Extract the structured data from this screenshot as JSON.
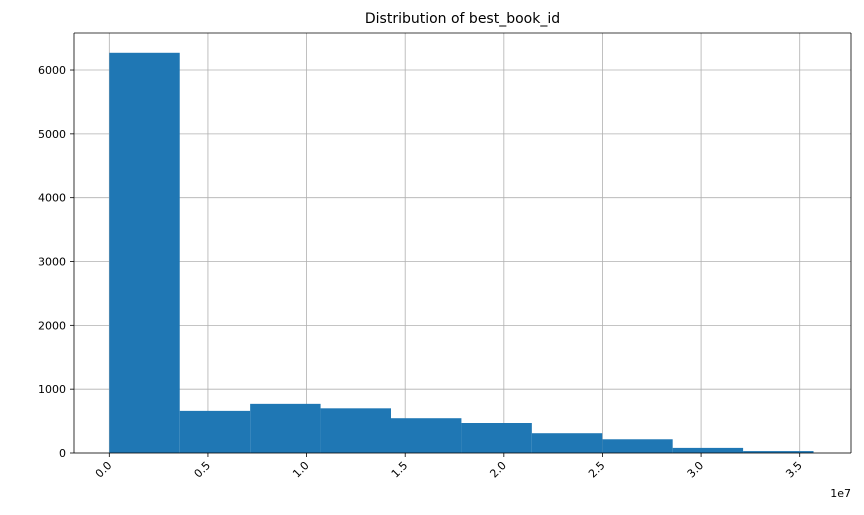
{
  "chart_data": {
    "type": "bar",
    "title": "Distribution of best_book_id",
    "xlabel": "",
    "ylabel": "",
    "x_offset_label": "1e7",
    "xlim": [
      -0.179,
      3.76
    ],
    "ylim": [
      0,
      6580
    ],
    "x_ticks": [
      0.0,
      0.5,
      1.0,
      1.5,
      2.0,
      2.5,
      3.0,
      3.5
    ],
    "x_tick_labels": [
      "0.0",
      "0.5",
      "1.0",
      "1.5",
      "2.0",
      "2.5",
      "3.0",
      "3.5"
    ],
    "y_ticks": [
      0,
      1000,
      2000,
      3000,
      4000,
      5000,
      6000
    ],
    "y_tick_labels": [
      "0",
      "1000",
      "2000",
      "3000",
      "4000",
      "5000",
      "6000"
    ],
    "grid": true,
    "bar_color": "#1f77b4",
    "bins": [
      {
        "start": 0.0,
        "end": 0.357,
        "count": 6270
      },
      {
        "start": 0.357,
        "end": 0.714,
        "count": 660
      },
      {
        "start": 0.714,
        "end": 1.071,
        "count": 770
      },
      {
        "start": 1.071,
        "end": 1.428,
        "count": 700
      },
      {
        "start": 1.428,
        "end": 1.785,
        "count": 545
      },
      {
        "start": 1.785,
        "end": 2.142,
        "count": 470
      },
      {
        "start": 2.142,
        "end": 2.499,
        "count": 310
      },
      {
        "start": 2.499,
        "end": 2.856,
        "count": 215
      },
      {
        "start": 2.856,
        "end": 3.213,
        "count": 80
      },
      {
        "start": 3.213,
        "end": 3.57,
        "count": 30
      }
    ]
  }
}
